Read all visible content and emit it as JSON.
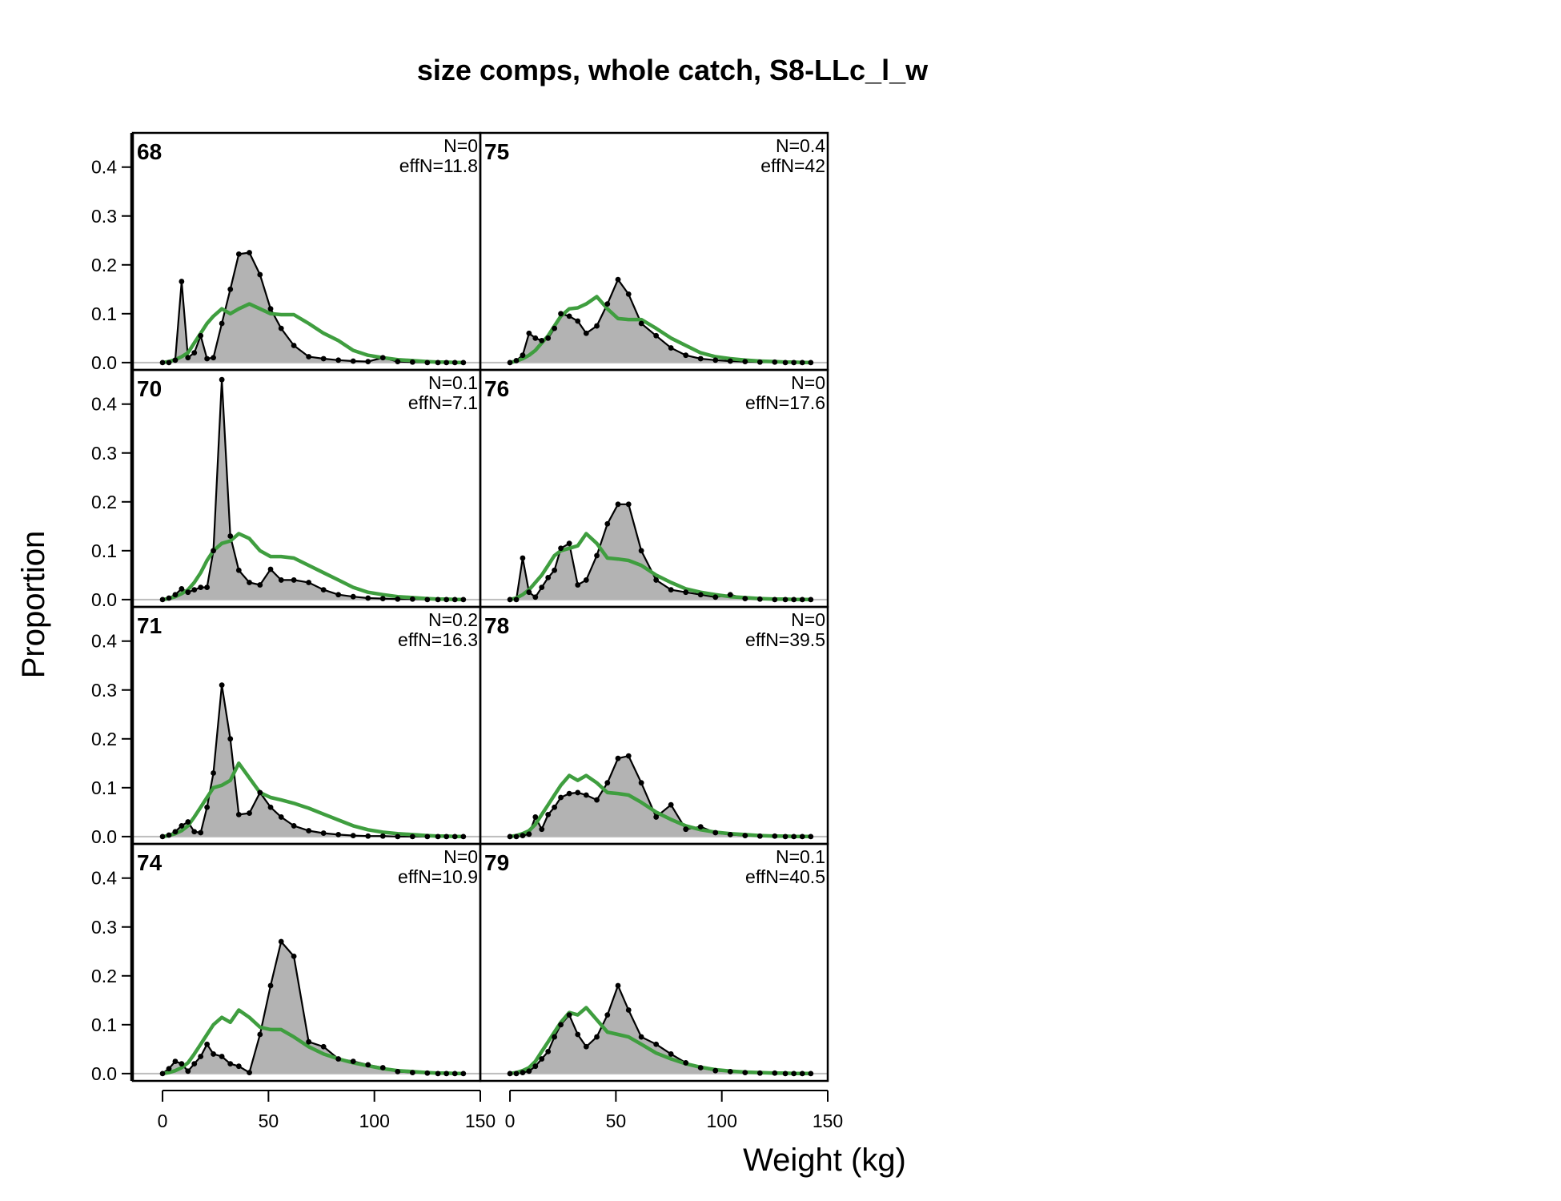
{
  "chart_data": {
    "type": "area",
    "title": "size comps, whole catch, S8-LLc_l_w",
    "xlabel": "Weight (kg)",
    "ylabel": "Proportion",
    "xlim": [
      -14,
      150
    ],
    "ylim": [
      -0.015,
      0.47
    ],
    "x_ticks": [
      0,
      50,
      100,
      150
    ],
    "y_ticks": [
      0.0,
      0.1,
      0.2,
      0.3,
      0.4
    ],
    "x_tick_labels": [
      "0",
      "50",
      "100",
      "150"
    ],
    "y_tick_labels": [
      "0.0",
      "0.1",
      "0.2",
      "0.3",
      "0.4"
    ],
    "x": [
      0,
      3,
      6,
      9,
      12,
      15,
      18,
      21,
      24,
      28,
      32,
      36,
      41,
      46,
      51,
      56,
      62,
      69,
      76,
      83,
      90,
      97,
      104,
      111,
      118,
      125,
      130,
      134,
      138,
      142
    ],
    "series_styles": {
      "observed": {
        "fill": "#b3b3b3",
        "line": "#000000",
        "marker": "point"
      },
      "expected": {
        "line": "#3f9e3f"
      }
    },
    "panels": [
      {
        "label": "68",
        "n_text": "N=0",
        "effn_text": "effN=11.8",
        "observed": [
          0,
          0,
          0.005,
          0.166,
          0.01,
          0.02,
          0.055,
          0.008,
          0.01,
          0.08,
          0.15,
          0.222,
          0.225,
          0.18,
          0.11,
          0.07,
          0.035,
          0.012,
          0.008,
          0.005,
          0.003,
          0.002,
          0.01,
          0.002,
          0.001,
          0,
          0,
          0,
          0,
          0
        ],
        "expected": [
          0,
          0.002,
          0.006,
          0.012,
          0.02,
          0.04,
          0.06,
          0.08,
          0.095,
          0.11,
          0.1,
          0.11,
          0.12,
          0.11,
          0.1,
          0.098,
          0.098,
          0.08,
          0.06,
          0.045,
          0.025,
          0.015,
          0.01,
          0.006,
          0.004,
          0.002,
          0.001,
          0.001,
          0,
          0
        ]
      },
      {
        "label": "75",
        "n_text": "N=0.4",
        "effn_text": "effN=42",
        "observed": [
          0,
          0.004,
          0.015,
          0.06,
          0.05,
          0.045,
          0.05,
          0.07,
          0.1,
          0.095,
          0.085,
          0.06,
          0.075,
          0.12,
          0.17,
          0.14,
          0.08,
          0.055,
          0.03,
          0.015,
          0.008,
          0.005,
          0.003,
          0.002,
          0.001,
          0.001,
          0,
          0,
          0,
          0
        ],
        "expected": [
          0,
          0.003,
          0.008,
          0.015,
          0.025,
          0.04,
          0.055,
          0.075,
          0.095,
          0.11,
          0.112,
          0.12,
          0.135,
          0.11,
          0.09,
          0.088,
          0.088,
          0.07,
          0.05,
          0.035,
          0.02,
          0.012,
          0.008,
          0.005,
          0.003,
          0.002,
          0.001,
          0.001,
          0,
          0
        ]
      },
      {
        "label": "70",
        "n_text": "N=0.1",
        "effn_text": "effN=7.1",
        "observed": [
          0,
          0.003,
          0.01,
          0.022,
          0.015,
          0.02,
          0.025,
          0.025,
          0.1,
          0.45,
          0.13,
          0.06,
          0.035,
          0.03,
          0.062,
          0.04,
          0.04,
          0.035,
          0.02,
          0.01,
          0.006,
          0.003,
          0.002,
          0.001,
          0.001,
          0,
          0,
          0,
          0,
          0
        ],
        "expected": [
          0,
          0.002,
          0.006,
          0.012,
          0.02,
          0.035,
          0.055,
          0.08,
          0.1,
          0.115,
          0.12,
          0.135,
          0.125,
          0.1,
          0.088,
          0.088,
          0.085,
          0.07,
          0.055,
          0.04,
          0.025,
          0.015,
          0.01,
          0.006,
          0.004,
          0.002,
          0.001,
          0.001,
          0,
          0
        ]
      },
      {
        "label": "76",
        "n_text": "N=0",
        "effn_text": "effN=17.6",
        "observed": [
          0,
          0,
          0.085,
          0.015,
          0.005,
          0.025,
          0.045,
          0.06,
          0.105,
          0.115,
          0.03,
          0.04,
          0.09,
          0.155,
          0.195,
          0.195,
          0.1,
          0.04,
          0.02,
          0.015,
          0.01,
          0.005,
          0.01,
          0.002,
          0.001,
          0,
          0,
          0,
          0,
          0
        ],
        "expected": [
          0,
          0.003,
          0.01,
          0.02,
          0.035,
          0.05,
          0.07,
          0.09,
          0.1,
          0.105,
          0.11,
          0.135,
          0.115,
          0.085,
          0.083,
          0.08,
          0.07,
          0.05,
          0.035,
          0.022,
          0.015,
          0.01,
          0.006,
          0.004,
          0.002,
          0.001,
          0.001,
          0,
          0,
          0
        ]
      },
      {
        "label": "71",
        "n_text": "N=0.2",
        "effn_text": "effN=16.3",
        "observed": [
          0,
          0.003,
          0.01,
          0.022,
          0.03,
          0.01,
          0.008,
          0.06,
          0.13,
          0.31,
          0.2,
          0.045,
          0.048,
          0.09,
          0.06,
          0.04,
          0.022,
          0.012,
          0.007,
          0.004,
          0.002,
          0.001,
          0.001,
          0,
          0,
          0,
          0,
          0,
          0,
          0
        ],
        "expected": [
          0,
          0.002,
          0.006,
          0.012,
          0.022,
          0.04,
          0.06,
          0.08,
          0.1,
          0.105,
          0.115,
          0.15,
          0.12,
          0.09,
          0.08,
          0.075,
          0.068,
          0.058,
          0.046,
          0.034,
          0.022,
          0.014,
          0.009,
          0.006,
          0.004,
          0.002,
          0.001,
          0.001,
          0,
          0
        ]
      },
      {
        "label": "78",
        "n_text": "N=0",
        "effn_text": "effN=39.5",
        "observed": [
          0,
          0,
          0.002,
          0.005,
          0.04,
          0.015,
          0.045,
          0.06,
          0.08,
          0.088,
          0.09,
          0.085,
          0.075,
          0.11,
          0.16,
          0.165,
          0.11,
          0.04,
          0.065,
          0.015,
          0.02,
          0.008,
          0.004,
          0.002,
          0.001,
          0.001,
          0,
          0,
          0,
          0
        ],
        "expected": [
          0,
          0.002,
          0.006,
          0.012,
          0.025,
          0.045,
          0.065,
          0.085,
          0.105,
          0.125,
          0.115,
          0.125,
          0.11,
          0.09,
          0.088,
          0.085,
          0.07,
          0.05,
          0.035,
          0.022,
          0.014,
          0.009,
          0.006,
          0.004,
          0.002,
          0.001,
          0.001,
          0,
          0,
          0
        ]
      },
      {
        "label": "74",
        "n_text": "N=0",
        "effn_text": "effN=10.9",
        "observed": [
          0,
          0.01,
          0.025,
          0.02,
          0.005,
          0.02,
          0.035,
          0.06,
          0.04,
          0.035,
          0.02,
          0.015,
          0.002,
          0.08,
          0.18,
          0.27,
          0.24,
          0.065,
          0.055,
          0.03,
          0.025,
          0.018,
          0.012,
          0.004,
          0.002,
          0.001,
          0,
          0,
          0,
          0
        ],
        "expected": [
          0,
          0.002,
          0.006,
          0.012,
          0.022,
          0.04,
          0.06,
          0.08,
          0.1,
          0.115,
          0.105,
          0.13,
          0.115,
          0.095,
          0.09,
          0.09,
          0.075,
          0.055,
          0.04,
          0.03,
          0.022,
          0.016,
          0.01,
          0.006,
          0.004,
          0.002,
          0.001,
          0.001,
          0,
          0
        ]
      },
      {
        "label": "79",
        "n_text": "N=0.1",
        "effn_text": "effN=40.5",
        "observed": [
          0,
          0,
          0.002,
          0.005,
          0.015,
          0.03,
          0.045,
          0.075,
          0.1,
          0.12,
          0.08,
          0.055,
          0.075,
          0.12,
          0.18,
          0.13,
          0.075,
          0.06,
          0.04,
          0.022,
          0.012,
          0.006,
          0.004,
          0.002,
          0.001,
          0.001,
          0,
          0,
          0,
          0
        ],
        "expected": [
          0,
          0.002,
          0.006,
          0.012,
          0.025,
          0.045,
          0.065,
          0.085,
          0.105,
          0.125,
          0.12,
          0.135,
          0.11,
          0.085,
          0.08,
          0.075,
          0.06,
          0.042,
          0.03,
          0.02,
          0.013,
          0.008,
          0.005,
          0.003,
          0.002,
          0.001,
          0.001,
          0,
          0,
          0
        ]
      }
    ]
  }
}
